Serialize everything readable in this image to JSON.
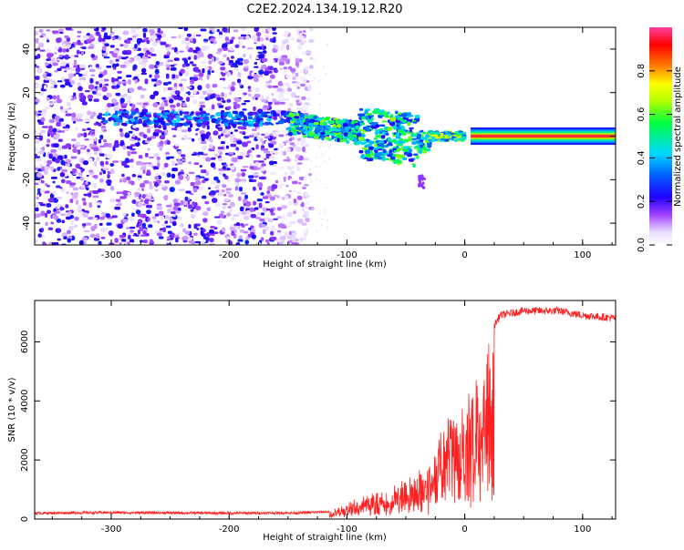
{
  "title": "C2E2.2024.134.19.12.R20",
  "colors": {
    "snr_line": "#ff2020",
    "colorbar": [
      "#ffffff",
      "#e8dcff",
      "#a040ff",
      "#0000ff",
      "#00c8ff",
      "#00ff00",
      "#ffff00",
      "#ff8000",
      "#ff0000",
      "#ff40a0"
    ]
  },
  "chart_data": [
    {
      "type": "heatmap",
      "name": "spectrogram",
      "title": "C2E2.2024.134.19.12.R20",
      "xlabel": "Height of straight line (km)",
      "ylabel": "Frequency (Hz)",
      "xlim": [
        -365,
        128
      ],
      "ylim": [
        -50,
        50
      ],
      "xticks": [
        "-300",
        "-200",
        "-100",
        "0",
        "100"
      ],
      "yticks": [
        "40",
        "20",
        "0",
        "-20",
        "-40"
      ],
      "colorbar_label": "Normalized spectral amplitude",
      "colorbar_range": [
        0,
        1
      ],
      "colorbar_ticks": [
        "0.0",
        "0.2",
        "0.4",
        "0.6",
        "0.8"
      ],
      "features": [
        {
          "label": "broadband noise",
          "x_range": [
            -365,
            -130
          ],
          "freq_range": [
            -50,
            50
          ],
          "amplitude": 0.2
        },
        {
          "label": "weak carrier",
          "x_range": [
            -310,
            -140
          ],
          "freq_center": 8,
          "amplitude": 0.4
        },
        {
          "label": "scattered signal",
          "x_range": [
            -150,
            -30
          ],
          "freq_range": [
            -25,
            15
          ],
          "amplitude": 0.5
        },
        {
          "label": "narrow carrier",
          "x_range": [
            -30,
            0
          ],
          "freq_center": 0,
          "amplitude": 0.7
        },
        {
          "label": "steady carrier",
          "x_range": [
            5,
            128
          ],
          "freq_center": 0,
          "amplitude": 1.0
        }
      ]
    },
    {
      "type": "line",
      "name": "snr",
      "xlabel": "Height of straight line (km)",
      "ylabel": "SNR (10 * v/v)",
      "xlim": [
        -365,
        128
      ],
      "ylim": [
        0,
        7400
      ],
      "xticks": [
        "-300",
        "-200",
        "-100",
        "0",
        "100"
      ],
      "yticks": [
        "0",
        "2000",
        "4000",
        "6000"
      ],
      "x": [
        -365,
        -300,
        -200,
        -140,
        -115,
        -100,
        -80,
        -60,
        -40,
        -25,
        -20,
        -10,
        0,
        10,
        20,
        30,
        50,
        80,
        100,
        128
      ],
      "y": [
        200,
        220,
        200,
        210,
        250,
        500,
        800,
        1100,
        1600,
        2200,
        3000,
        3300,
        3600,
        4800,
        6200,
        6900,
        7050,
        7050,
        6900,
        6800
      ]
    }
  ]
}
